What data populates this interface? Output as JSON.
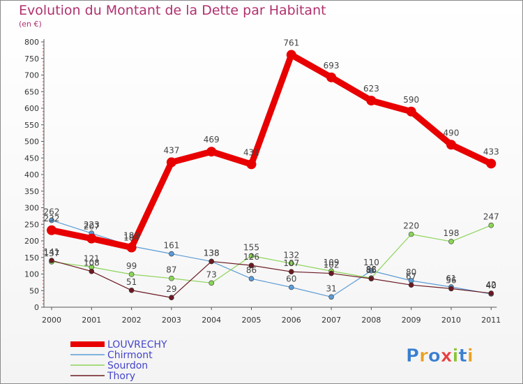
{
  "title": "Evolution du Montant de la Dette par Habitant",
  "subtitle": "(en €)",
  "logo_text": "Proxiti",
  "chart_data": {
    "type": "line",
    "title": "Evolution du Montant de la Dette par Habitant",
    "subtitle": "(en €)",
    "x": [
      "2000",
      "2001",
      "2002",
      "2003",
      "2004",
      "2005",
      "2006",
      "2007",
      "2008",
      "2009",
      "2010",
      "2011"
    ],
    "ylim": [
      0,
      800
    ],
    "yticks": [
      0,
      50,
      100,
      150,
      200,
      250,
      300,
      350,
      400,
      450,
      500,
      550,
      600,
      650,
      700,
      750,
      800
    ],
    "grid": false,
    "legend_position": "bottom-left",
    "series": [
      {
        "name": "LOUVRECHY",
        "color": "#e80000",
        "values": [
          232,
          207,
          180,
          437,
          469,
          431,
          761,
          693,
          623,
          590,
          490,
          433
        ]
      },
      {
        "name": "Chirmont",
        "color": "#5b9bd5",
        "values": [
          262,
          223,
          184,
          161,
          138,
          86,
          60,
          31,
          110,
          80,
          61,
          40
        ]
      },
      {
        "name": "Sourdon",
        "color": "#8cd45a",
        "values": [
          137,
          121,
          99,
          87,
          73,
          155,
          132,
          109,
          88,
          220,
          198,
          247
        ]
      },
      {
        "name": "Thory",
        "color": "#6b1a22",
        "values": [
          141,
          108,
          51,
          29,
          138,
          126,
          107,
          102,
          86,
          67,
          56,
          42
        ]
      }
    ]
  }
}
